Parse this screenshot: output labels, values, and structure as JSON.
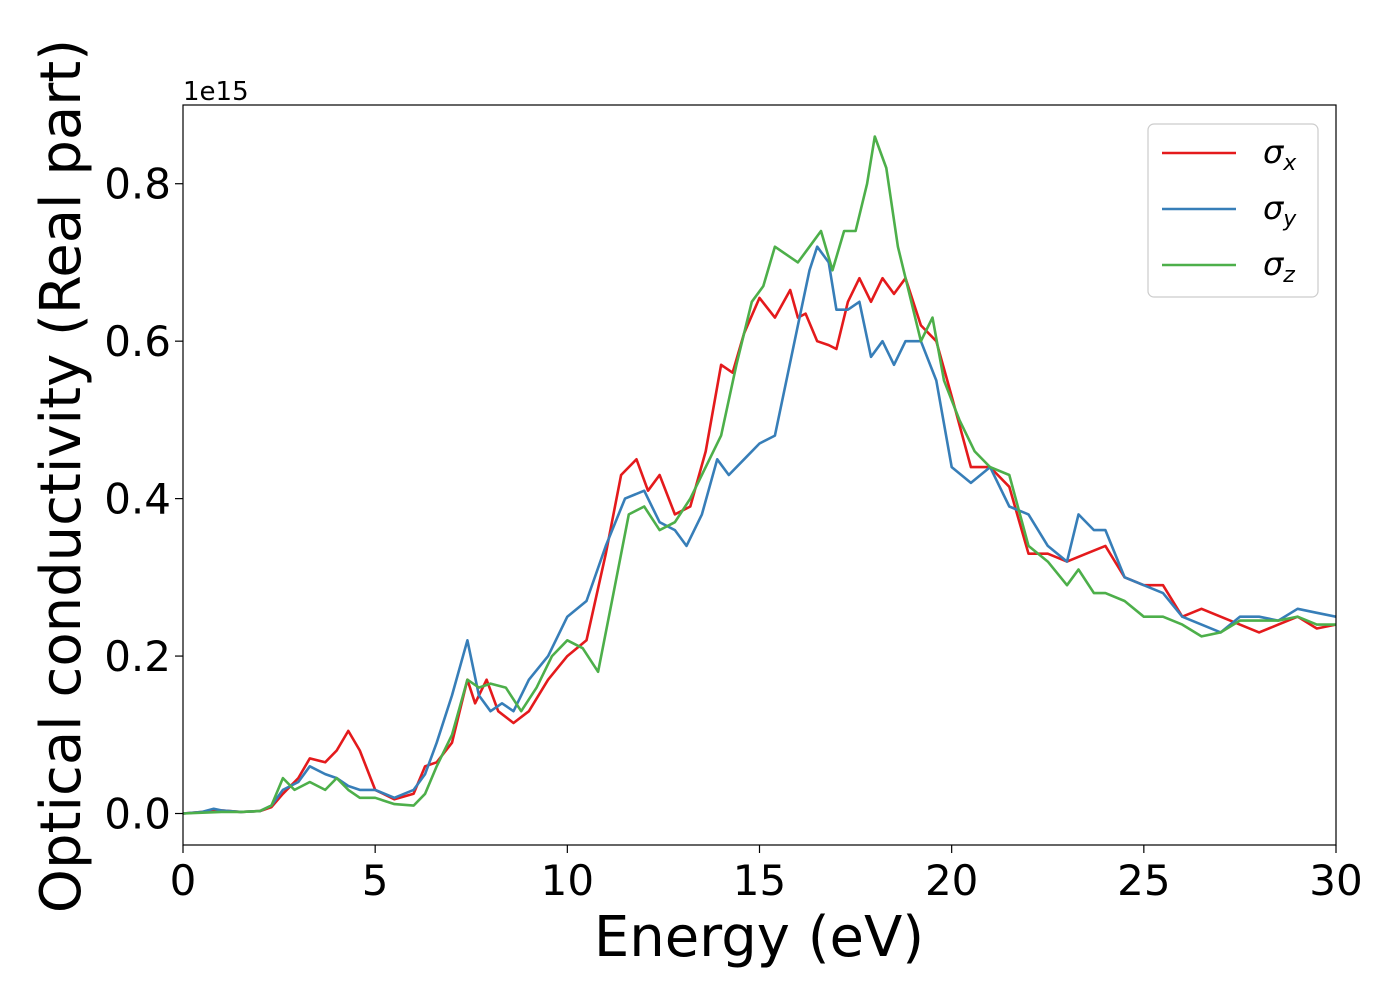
{
  "chart_data": {
    "type": "line",
    "xlabel": "Energy (eV)",
    "ylabel": "Optical conductivity (Real part)",
    "y_offset_label": "1e15",
    "xlim": [
      0,
      30
    ],
    "ylim": [
      -0.04,
      0.9
    ],
    "x_ticks": [
      0,
      5,
      10,
      15,
      20,
      25,
      30
    ],
    "x_tick_labels": [
      "0",
      "5",
      "10",
      "15",
      "20",
      "25",
      "30"
    ],
    "y_ticks": [
      0.0,
      0.2,
      0.4,
      0.6,
      0.8
    ],
    "y_tick_labels": [
      "0.0",
      "0.2",
      "0.4",
      "0.6",
      "0.8"
    ],
    "grid": false,
    "legend_position": "top-right",
    "series": [
      {
        "name": "σx",
        "legend_base": "σ",
        "legend_sub": "x",
        "color": "#e41a1c",
        "x": [
          0,
          0.5,
          1,
          1.5,
          2,
          2.3,
          2.6,
          3.0,
          3.3,
          3.7,
          4.0,
          4.3,
          4.6,
          5.0,
          5.5,
          6.0,
          6.3,
          6.6,
          7.0,
          7.4,
          7.6,
          7.9,
          8.2,
          8.6,
          9.0,
          9.5,
          10.0,
          10.5,
          11.0,
          11.4,
          11.8,
          12.1,
          12.4,
          12.8,
          13.2,
          13.6,
          14.0,
          14.3,
          14.6,
          15.0,
          15.4,
          15.8,
          16.0,
          16.2,
          16.5,
          16.8,
          17.0,
          17.3,
          17.6,
          17.9,
          18.2,
          18.5,
          18.8,
          19.2,
          19.6,
          20.0,
          20.5,
          21.0,
          21.5,
          22.0,
          22.5,
          23.0,
          23.5,
          24.0,
          24.5,
          25.0,
          25.5,
          26.0,
          26.5,
          27.0,
          27.5,
          28.0,
          28.5,
          29.0,
          29.5,
          30.0
        ],
        "y": [
          0.0,
          0.002,
          0.004,
          0.002,
          0.003,
          0.008,
          0.025,
          0.045,
          0.07,
          0.065,
          0.08,
          0.105,
          0.08,
          0.03,
          0.018,
          0.025,
          0.06,
          0.065,
          0.09,
          0.17,
          0.14,
          0.17,
          0.13,
          0.115,
          0.13,
          0.17,
          0.2,
          0.22,
          0.33,
          0.43,
          0.45,
          0.41,
          0.43,
          0.38,
          0.39,
          0.46,
          0.57,
          0.56,
          0.61,
          0.655,
          0.63,
          0.665,
          0.63,
          0.635,
          0.6,
          0.595,
          0.59,
          0.65,
          0.68,
          0.65,
          0.68,
          0.66,
          0.68,
          0.62,
          0.6,
          0.53,
          0.44,
          0.44,
          0.415,
          0.33,
          0.33,
          0.32,
          0.33,
          0.34,
          0.3,
          0.29,
          0.29,
          0.25,
          0.26,
          0.25,
          0.24,
          0.23,
          0.24,
          0.25,
          0.235,
          0.24
        ]
      },
      {
        "name": "σy",
        "legend_base": "σ",
        "legend_sub": "y",
        "color": "#377eb8",
        "x": [
          0,
          0.5,
          0.8,
          1,
          1.5,
          2,
          2.3,
          2.6,
          3.0,
          3.3,
          3.7,
          4.0,
          4.3,
          4.6,
          5.0,
          5.5,
          6.0,
          6.3,
          6.6,
          7.0,
          7.4,
          7.7,
          8.0,
          8.3,
          8.6,
          9.0,
          9.5,
          10.0,
          10.5,
          11.0,
          11.5,
          12.0,
          12.4,
          12.8,
          13.1,
          13.5,
          13.9,
          14.2,
          14.6,
          15.0,
          15.4,
          15.7,
          16.0,
          16.3,
          16.5,
          16.8,
          17.0,
          17.3,
          17.6,
          17.9,
          18.2,
          18.5,
          18.8,
          19.2,
          19.6,
          20.0,
          20.5,
          21.0,
          21.5,
          22.0,
          22.5,
          23.0,
          23.3,
          23.7,
          24.0,
          24.5,
          25.0,
          25.5,
          26.0,
          26.5,
          27.0,
          27.5,
          28.0,
          28.5,
          29.0,
          29.5,
          30.0
        ],
        "y": [
          0.0,
          0.002,
          0.006,
          0.004,
          0.002,
          0.003,
          0.01,
          0.03,
          0.04,
          0.06,
          0.05,
          0.045,
          0.035,
          0.03,
          0.03,
          0.02,
          0.03,
          0.05,
          0.09,
          0.15,
          0.22,
          0.15,
          0.13,
          0.14,
          0.13,
          0.17,
          0.2,
          0.25,
          0.27,
          0.34,
          0.4,
          0.41,
          0.37,
          0.36,
          0.34,
          0.38,
          0.45,
          0.43,
          0.45,
          0.47,
          0.48,
          0.55,
          0.62,
          0.69,
          0.72,
          0.7,
          0.64,
          0.64,
          0.65,
          0.58,
          0.6,
          0.57,
          0.6,
          0.6,
          0.55,
          0.44,
          0.42,
          0.44,
          0.39,
          0.38,
          0.34,
          0.32,
          0.38,
          0.36,
          0.36,
          0.3,
          0.29,
          0.28,
          0.25,
          0.24,
          0.23,
          0.25,
          0.25,
          0.245,
          0.26,
          0.255,
          0.25
        ]
      },
      {
        "name": "σz",
        "legend_base": "σ",
        "legend_sub": "z",
        "color": "#4daf4a",
        "x": [
          0,
          0.5,
          1,
          1.5,
          2,
          2.3,
          2.6,
          2.9,
          3.3,
          3.7,
          4.0,
          4.3,
          4.6,
          5.0,
          5.5,
          6.0,
          6.3,
          6.6,
          7.0,
          7.4,
          7.7,
          8.0,
          8.4,
          8.8,
          9.2,
          9.6,
          10.0,
          10.4,
          10.8,
          11.2,
          11.6,
          12.0,
          12.4,
          12.8,
          13.2,
          13.6,
          14.0,
          14.4,
          14.8,
          15.1,
          15.4,
          15.7,
          16.0,
          16.3,
          16.6,
          16.9,
          17.2,
          17.5,
          17.8,
          18.0,
          18.3,
          18.6,
          18.9,
          19.2,
          19.5,
          19.8,
          20.2,
          20.6,
          21.0,
          21.5,
          22.0,
          22.5,
          23.0,
          23.3,
          23.7,
          24.0,
          24.5,
          25.0,
          25.5,
          26.0,
          26.5,
          27.0,
          27.5,
          28.0,
          28.5,
          29.0,
          29.5,
          30.0
        ],
        "y": [
          0.0,
          0.001,
          0.002,
          0.002,
          0.003,
          0.01,
          0.045,
          0.03,
          0.04,
          0.03,
          0.045,
          0.03,
          0.02,
          0.02,
          0.012,
          0.01,
          0.025,
          0.06,
          0.1,
          0.17,
          0.16,
          0.165,
          0.16,
          0.13,
          0.16,
          0.2,
          0.22,
          0.21,
          0.18,
          0.28,
          0.38,
          0.39,
          0.36,
          0.37,
          0.4,
          0.44,
          0.48,
          0.57,
          0.65,
          0.67,
          0.72,
          0.71,
          0.7,
          0.72,
          0.74,
          0.69,
          0.74,
          0.74,
          0.8,
          0.86,
          0.82,
          0.72,
          0.66,
          0.6,
          0.63,
          0.55,
          0.5,
          0.46,
          0.44,
          0.43,
          0.34,
          0.32,
          0.29,
          0.31,
          0.28,
          0.28,
          0.27,
          0.25,
          0.25,
          0.24,
          0.225,
          0.23,
          0.245,
          0.245,
          0.245,
          0.25,
          0.24,
          0.24
        ]
      }
    ]
  }
}
